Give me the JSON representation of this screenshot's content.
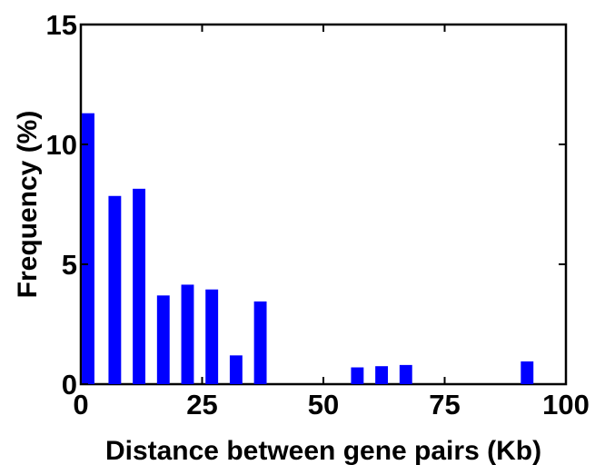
{
  "chart_data": {
    "type": "bar",
    "title": "",
    "xlabel": "Distance between gene pairs (Kb)",
    "ylabel": "Frequency (%)",
    "xlim": [
      0,
      100
    ],
    "ylim": [
      0,
      15
    ],
    "xticks": [
      0,
      25,
      50,
      75,
      100
    ],
    "yticks": [
      0,
      5,
      10,
      15
    ],
    "grid": false,
    "legend": "none",
    "bar_color": "#0000ff",
    "bar_width": 2.6,
    "bars": [
      {
        "x": 1.5,
        "y": 11.3
      },
      {
        "x": 7.0,
        "y": 7.85
      },
      {
        "x": 12.0,
        "y": 8.15
      },
      {
        "x": 17.0,
        "y": 3.7
      },
      {
        "x": 22.0,
        "y": 4.15
      },
      {
        "x": 27.0,
        "y": 3.95
      },
      {
        "x": 32.0,
        "y": 1.2
      },
      {
        "x": 37.0,
        "y": 3.45
      },
      {
        "x": 57.0,
        "y": 0.7
      },
      {
        "x": 62.0,
        "y": 0.75
      },
      {
        "x": 67.0,
        "y": 0.8
      },
      {
        "x": 92.0,
        "y": 0.95
      }
    ]
  }
}
